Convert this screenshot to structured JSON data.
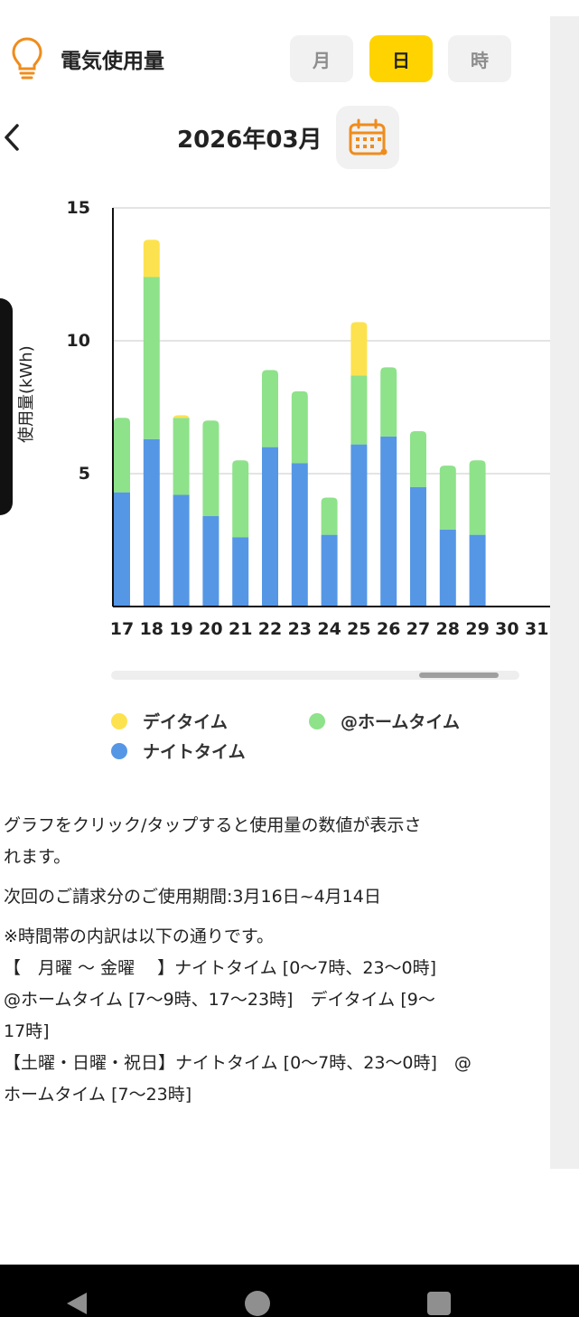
{
  "header": {
    "title": "電気使用量"
  },
  "period_tabs": [
    {
      "label": "月",
      "active": false
    },
    {
      "label": "日",
      "active": true
    },
    {
      "label": "時",
      "active": false
    }
  ],
  "month_nav": {
    "label": "2026年03月"
  },
  "icons": {
    "bulb": "lightbulb-icon",
    "back": "chevron-left-icon",
    "calendar": "calendar-icon"
  },
  "colors": {
    "accent": "#ffd300",
    "day": "#fde24f",
    "home": "#8ee28a",
    "night": "#5597e5",
    "icon_orange": "#ef8c1c"
  },
  "chart_data": {
    "type": "bar",
    "stacked": true,
    "categories": [
      "17",
      "18",
      "19",
      "20",
      "21",
      "22",
      "23",
      "24",
      "25",
      "26",
      "27",
      "28",
      "29",
      "30",
      "31"
    ],
    "series": [
      {
        "name": "ナイトタイム",
        "color": "#5597e5",
        "values": [
          4.3,
          6.3,
          4.2,
          3.4,
          2.6,
          6.0,
          5.4,
          2.7,
          6.1,
          6.4,
          4.5,
          2.9,
          2.7,
          0,
          0
        ]
      },
      {
        "name": "@ホームタイム",
        "color": "#8ee28a",
        "values": [
          2.8,
          6.1,
          2.9,
          3.6,
          2.9,
          2.9,
          2.7,
          1.4,
          2.6,
          2.6,
          2.1,
          2.4,
          2.8,
          0,
          0
        ]
      },
      {
        "name": "デイタイム",
        "color": "#fde24f",
        "values": [
          0,
          1.4,
          0.1,
          0,
          0,
          0,
          0,
          0,
          2.0,
          0,
          0,
          0,
          0,
          0,
          0
        ]
      }
    ],
    "ylabel": "使用量(kWh)",
    "ylim": [
      0,
      15
    ],
    "yticks": [
      "5",
      "10",
      "15"
    ],
    "grid": true
  },
  "legend": [
    {
      "label": "デイタイム",
      "color": "#fde24f"
    },
    {
      "label": "@ホームタイム",
      "color": "#8ee28a"
    },
    {
      "label": "ナイトタイム",
      "color": "#5597e5"
    }
  ],
  "notes": {
    "line1": "グラフをクリック/タップすると使用量の数値が表示さ",
    "line2": "れます。",
    "line3": "次回のご請求分のご使用期間:3月16日~4月14日",
    "line4": "※時間帯の内訳は以下の通りです。",
    "line5": "【　月曜 〜 金曜　 】ナイトタイム [0〜7時、23〜0時]",
    "line6": "@ホームタイム [7〜9時、17〜23時]　デイタイム [9〜",
    "line7": "17時]",
    "line8": "【土曜・日曜・祝日】ナイトタイム [0〜7時、23〜0時]　@",
    "line9": "ホームタイム [7〜23時]"
  }
}
